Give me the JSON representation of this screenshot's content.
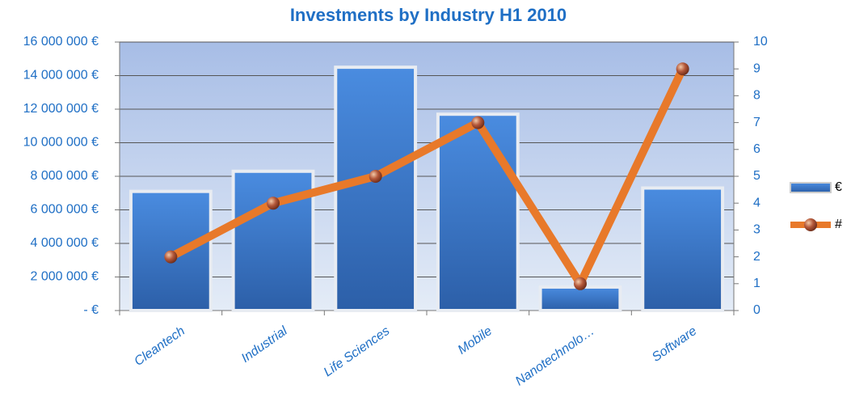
{
  "chart_data": {
    "type": "bar_line",
    "title": "Investments by Industry H1 2010",
    "categories": [
      "Cleantech",
      "Industrial",
      "Life Sciences",
      "Mobile",
      "Nanotechnolo…",
      "Software"
    ],
    "series": [
      {
        "name": "€",
        "type": "bar",
        "color": "#3a78cf",
        "values": [
          7100000,
          8300000,
          14500000,
          11700000,
          1400000,
          7300000
        ]
      },
      {
        "name": "#",
        "type": "line",
        "axis": "y2",
        "color": "#e8792a",
        "values": [
          2,
          4,
          5,
          7,
          1,
          9
        ]
      }
    ],
    "ylim": [
      0,
      16000000
    ],
    "yticks": [
      {
        "value": 0,
        "label": "- €"
      },
      {
        "value": 2000000,
        "label": "2 000 000 €"
      },
      {
        "value": 4000000,
        "label": "4 000 000 €"
      },
      {
        "value": 6000000,
        "label": "6 000 000 €"
      },
      {
        "value": 8000000,
        "label": "8 000 000 €"
      },
      {
        "value": 10000000,
        "label": "10 000 000 €"
      },
      {
        "value": 12000000,
        "label": "12 000 000 €"
      },
      {
        "value": 14000000,
        "label": "14 000 000 €"
      },
      {
        "value": 16000000,
        "label": "16 000 000 €"
      }
    ],
    "y2lim": [
      0,
      10
    ],
    "y2ticks": [
      0,
      1,
      2,
      3,
      4,
      5,
      6,
      7,
      8,
      9,
      10
    ],
    "grid": true,
    "legend": "right"
  }
}
